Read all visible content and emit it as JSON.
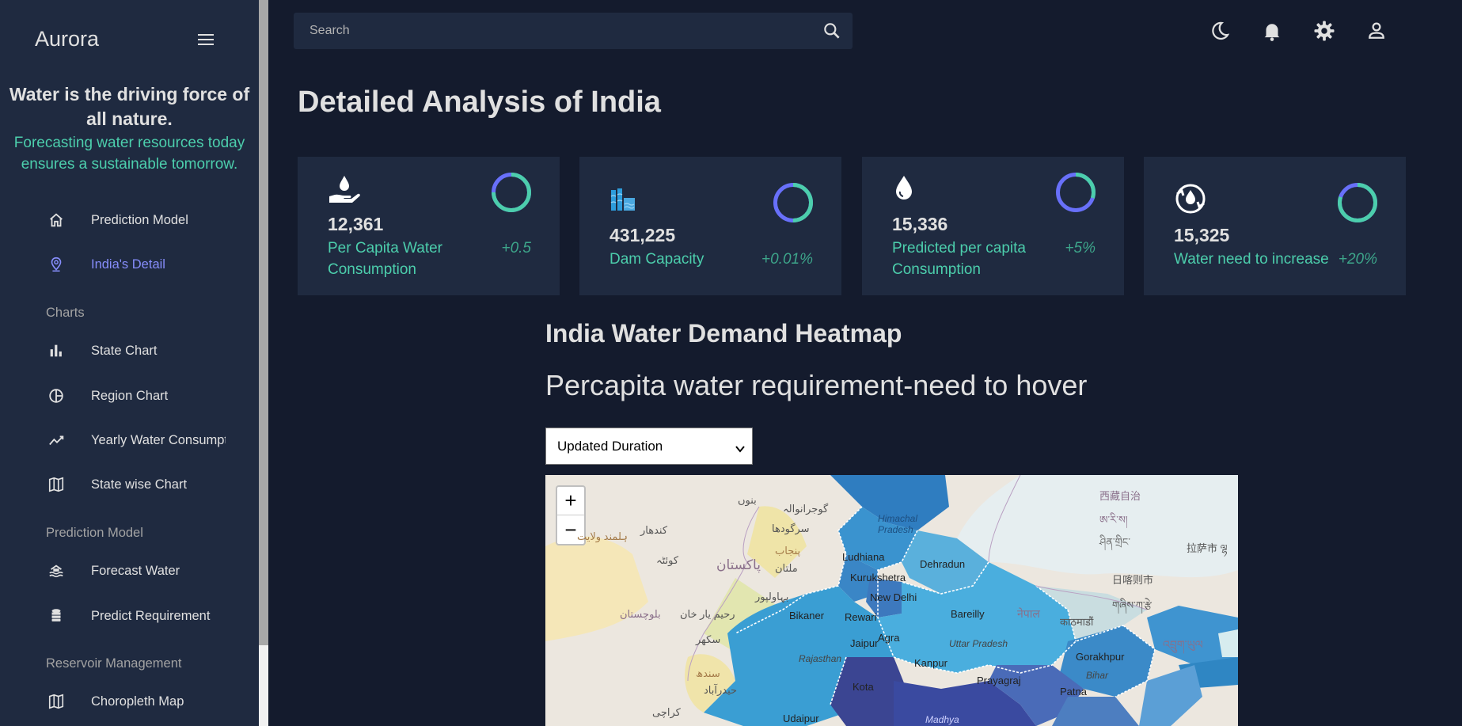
{
  "sidebar": {
    "brand": "Aurora",
    "tagline_heading": "Water is the driving force of all nature.",
    "tagline_sub": "Forecasting water resources today ensures a sustainable tomorrow.",
    "items": [
      {
        "label": "Prediction Model",
        "icon": "home-icon"
      },
      {
        "label": "India's Detail",
        "icon": "location-pin-icon",
        "active": true
      },
      {
        "label": "State Chart",
        "icon": "bar-chart-icon"
      },
      {
        "label": "Region Chart",
        "icon": "pie-chart-icon"
      },
      {
        "label": "Yearly Water Consumption",
        "icon": "line-chart-icon"
      },
      {
        "label": "State wise Chart",
        "icon": "map-icon"
      },
      {
        "label": "Forecast Water",
        "icon": "flood-icon"
      },
      {
        "label": "Predict Requirement",
        "icon": "database-icon"
      },
      {
        "label": "Choropleth Map",
        "icon": "map-icon"
      }
    ],
    "headings": {
      "charts": "Charts",
      "prediction": "Prediction Model",
      "reservoir": "Reservoir Management"
    }
  },
  "topbar": {
    "search_placeholder": "Search",
    "icons": [
      "moon-icon",
      "bell-icon",
      "gear-icon",
      "person-icon"
    ]
  },
  "page": {
    "title": "Detailed Analysis of India"
  },
  "stats": [
    {
      "value": "12,361",
      "label": "Per Capita Water Consumption",
      "increase": "+0.5",
      "icon": "water-hand-icon",
      "progress": 0.75
    },
    {
      "value": "431,225",
      "label": "Dam Capacity",
      "increase": "+0.01%",
      "icon": "dam-icon",
      "progress": 0.5
    },
    {
      "value": "15,336",
      "label": "Predicted per capita Consumption",
      "increase": "+5%",
      "icon": "water-drop-icon",
      "progress": 0.3
    },
    {
      "value": "15,325",
      "label": "Water need to increase",
      "increase": "+20%",
      "icon": "recycle-water-icon",
      "progress": 0.8
    }
  ],
  "heatmap": {
    "title": "India Water Demand Heatmap",
    "subtitle": "Percapita water requirement-need to hover",
    "duration_selected": "Updated Duration",
    "zoom_in": "+",
    "zoom_out": "−",
    "labels": {
      "kashgar": "西藏自治",
      "tibet1": "ཨ་རི་ས།",
      "tibet2": "ཤིན་གྲིང་",
      "lhasa": "拉萨市 ལྷ",
      "shigatse": "日喀则市",
      "tibet3": "གཞིས་ཀ་རྩེ",
      "bannu": "بنوں",
      "gujranwala": "گوجرانوالہ",
      "sargodha": "سرگودھا",
      "kandahar": "کندھار",
      "helmand": "ہلمند ولایت",
      "punjab_pk": "پنجاب",
      "quetta": "کوئٹہ",
      "pakistan": "پاکستان",
      "multan": "ملتان",
      "bahawalpur": "بہاولپور",
      "balochistan": "بلوچستان",
      "rahimyar": "رحیم یار خان",
      "sukkur": "سکھر",
      "sindh": "سندھ",
      "hyderabad": "حیدرآباد",
      "karachi": "کراچی",
      "himachal": "Himachal Pradesh",
      "ludhiana": "Ludhiana",
      "dehradun": "Dehradun",
      "kurukshetra": "Kurukshetra",
      "newdelhi": "New Delhi",
      "bikaner": "Bikaner",
      "rewari": "Rewari",
      "bareilly": "Bareilly",
      "nepal": "नेपाल",
      "kathmandu": "काठमाडौं",
      "agra": "Agra",
      "jaipur": "Jaipur",
      "uttarpradesh": "Uttar Pradesh",
      "rajasthan": "Rajasthan",
      "kanpur": "Kanpur",
      "gorakhpur": "Gorakhpur",
      "prayagraj": "Prayagraj",
      "bihar": "Bihar",
      "kota": "Kota",
      "patna": "Patna",
      "bhutan": "འབྲུག་ཡུལ",
      "udaipur": "Udaipur",
      "madhya": "Madhya"
    }
  }
}
